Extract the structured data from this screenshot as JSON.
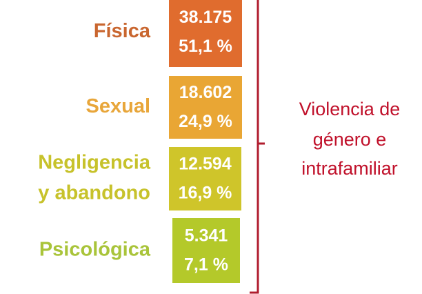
{
  "items": [
    {
      "label": [
        "Física"
      ],
      "count": "38.175",
      "percent": "51,1 %"
    },
    {
      "label": [
        "Sexual"
      ],
      "count": "18.602",
      "percent": "24,9 %"
    },
    {
      "label": [
        "Negligencia",
        "y abandono"
      ],
      "count": "12.594",
      "percent": "16,9 %"
    },
    {
      "label": [
        "Psicológica"
      ],
      "count": "5.341",
      "percent": "7,1 %"
    }
  ],
  "group_label": [
    "Violencia de",
    "género e",
    "intrafamiliar"
  ]
}
